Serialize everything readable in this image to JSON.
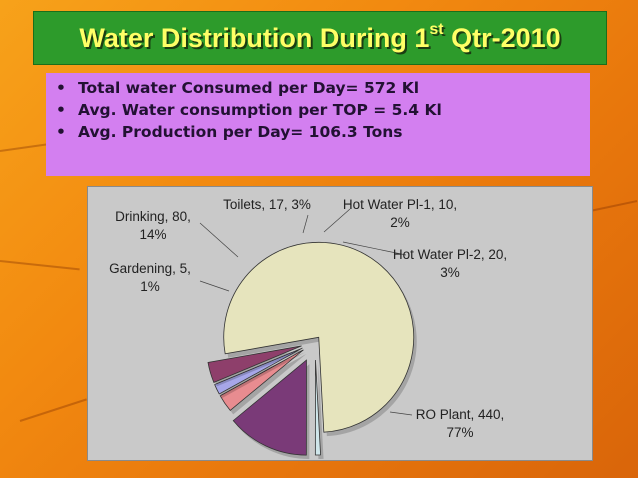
{
  "slide": {
    "title_main": "Water Distribution During 1",
    "title_sup": "st",
    "title_end": " Qtr-2010"
  },
  "bullets": [
    "Total water Consumed per Day= 572 Kl",
    "Avg. Water consumption per TOP = 5.4 Kl",
    "Avg. Production per Day= 106.3 Tons"
  ],
  "chart_data": {
    "type": "pie",
    "style": "3d-exploded",
    "slices": [
      {
        "label": "RO Plant",
        "value": 440,
        "percent": "77%",
        "color": "#e6e4bd"
      },
      {
        "label": "Gardening",
        "value": 5,
        "percent": "1%",
        "color": "#cfe6ea"
      },
      {
        "label": "Drinking",
        "value": 80,
        "percent": "14%",
        "color": "#7a3a78"
      },
      {
        "label": "Toilets",
        "value": 17,
        "percent": "3%",
        "color": "#e88c90"
      },
      {
        "label": "Hot Water Pl-1",
        "value": 10,
        "percent": "2%",
        "color": "#a7a6e8"
      },
      {
        "label": "Hot Water Pl-2",
        "value": 20,
        "percent": "3%",
        "color": "#8e3f6b"
      }
    ]
  }
}
